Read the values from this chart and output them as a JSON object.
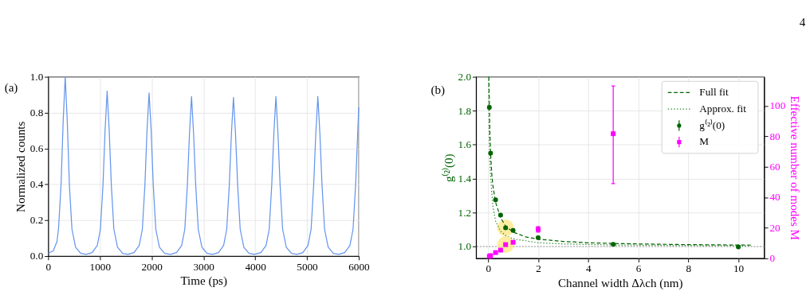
{
  "chart_data": [
    {
      "type": "line",
      "xlabel": "Time (ps)",
      "ylabel": "Normalized counts",
      "xlim": [
        0,
        6000
      ],
      "ylim": [
        0,
        1.0
      ],
      "xticks": [
        0,
        1000,
        2000,
        3000,
        4000,
        5000,
        6000
      ],
      "yticks": [
        {
          "value": 0,
          "label": "0.0"
        },
        0.2,
        0.4,
        0.6,
        0.8,
        {
          "value": 1.0,
          "label": "1.0"
        }
      ],
      "grid": true,
      "annotations": [
        "(a)"
      ],
      "x": [
        0,
        100,
        170,
        200,
        250,
        290,
        330,
        370,
        410,
        460,
        530,
        630,
        735,
        850,
        950,
        1010,
        1060,
        1100,
        1140,
        1180,
        1220,
        1270,
        1340,
        1440,
        1545,
        1660,
        1760,
        1820,
        1870,
        1910,
        1950,
        1990,
        2030,
        2080,
        2150,
        2250,
        2360,
        2480,
        2580,
        2640,
        2690,
        2730,
        2770,
        2810,
        2850,
        2900,
        2970,
        3070,
        3175,
        3290,
        3390,
        3450,
        3500,
        3540,
        3580,
        3620,
        3660,
        3710,
        3780,
        3880,
        3990,
        4110,
        4210,
        4270,
        4320,
        4360,
        4400,
        4440,
        4480,
        4530,
        4600,
        4700,
        4805,
        4920,
        5020,
        5080,
        5130,
        5170,
        5210,
        5250,
        5290,
        5340,
        5410,
        5510,
        5615,
        5730,
        5830,
        5890,
        5940,
        6000
      ],
      "series": [
        {
          "color": "#6495ed",
          "values": [
            0.015,
            0.03,
            0.08,
            0.15,
            0.4,
            0.75,
            1.0,
            0.75,
            0.4,
            0.15,
            0.05,
            0.015,
            0.01,
            0.02,
            0.06,
            0.15,
            0.4,
            0.7,
            0.92,
            0.7,
            0.4,
            0.15,
            0.05,
            0.015,
            0.01,
            0.02,
            0.06,
            0.15,
            0.4,
            0.7,
            0.91,
            0.7,
            0.4,
            0.15,
            0.05,
            0.015,
            0.01,
            0.02,
            0.06,
            0.15,
            0.4,
            0.68,
            0.89,
            0.68,
            0.4,
            0.15,
            0.05,
            0.015,
            0.01,
            0.02,
            0.06,
            0.15,
            0.4,
            0.68,
            0.885,
            0.68,
            0.4,
            0.15,
            0.05,
            0.015,
            0.01,
            0.02,
            0.06,
            0.15,
            0.4,
            0.68,
            0.89,
            0.68,
            0.4,
            0.15,
            0.05,
            0.015,
            0.01,
            0.02,
            0.06,
            0.15,
            0.4,
            0.68,
            0.89,
            0.68,
            0.4,
            0.15,
            0.05,
            0.015,
            0.01,
            0.02,
            0.06,
            0.15,
            0.4,
            0.83
          ]
        }
      ]
    },
    {
      "type": "scatter",
      "xlabel": "Channel width Δλch (nm)",
      "ylabel": "g⁽²⁾(0)",
      "y2label": "Effective number of modes M",
      "xlim": [
        -0.48,
        11.03
      ],
      "ylim": [
        0.93,
        2.0
      ],
      "y2lim": [
        0,
        119
      ],
      "xticks": [
        0,
        2,
        4,
        6,
        8,
        10
      ],
      "yticks": [
        {
          "value": 1.0,
          "label": "1.0"
        },
        1.2,
        1.4,
        1.6,
        1.8,
        {
          "value": 2.0,
          "label": "2.0"
        }
      ],
      "y2ticks": [
        0,
        20,
        40,
        60,
        80,
        100
      ],
      "grid": true,
      "legend": "top right",
      "annotations": [
        "(b)",
        "4"
      ],
      "ref_lines": [
        {
          "axis": "y",
          "value": 1.0,
          "color": "#808080",
          "line_style": "dotted"
        }
      ],
      "series": [
        {
          "type": "bubble",
          "color": "#ffe680",
          "x": [
            0.7
          ],
          "values": [
            1.11
          ],
          "sizes": [
            1
          ]
        },
        {
          "type": "bubble",
          "axis": "y2",
          "color": "#ffe680",
          "x": [
            0.7
          ],
          "values": [
            9
          ],
          "sizes": [
            1
          ]
        },
        {
          "name": "Full fit",
          "type": "line",
          "line_style": "dashed",
          "color": "#006400",
          "x": [
            0.03,
            0.05,
            0.07,
            0.1,
            0.15,
            0.2,
            0.3,
            0.5,
            0.7,
            1,
            1.5,
            2,
            3,
            4,
            5,
            6,
            8,
            10.5
          ],
          "values": [
            2.0,
            1.85,
            1.68,
            1.55,
            1.42,
            1.35,
            1.26,
            1.17,
            1.12,
            1.085,
            1.057,
            1.043,
            1.03,
            1.022,
            1.018,
            1.015,
            1.011,
            1.008
          ]
        },
        {
          "name": "Approx. fit",
          "type": "line",
          "line_style": "dotted",
          "color": "#2e8b2e",
          "x": [
            0.02,
            0.04,
            0.07,
            0.1,
            0.14,
            0.2,
            0.3,
            0.5,
            0.7,
            1,
            2,
            3,
            5,
            8,
            10.5
          ],
          "values": [
            2.0,
            1.7,
            1.5,
            1.42,
            1.33,
            1.23,
            1.15,
            1.09,
            1.065,
            1.045,
            1.022,
            1.015,
            1.009,
            1.006,
            1.004
          ]
        },
        {
          "name": "g⁽²⁾(0)",
          "type": "scatter",
          "marker": "circle",
          "color": "#006400",
          "x": [
            0.05,
            0.1,
            0.3,
            0.5,
            0.7,
            1,
            2,
            5,
            10
          ],
          "values": [
            1.82,
            1.55,
            1.275,
            1.185,
            1.11,
            1.095,
            1.052,
            1.013,
            0.998
          ],
          "errors": [
            0.008,
            0.008,
            0.008,
            0.008,
            0.008,
            0.008,
            0.008,
            0.006,
            0.006
          ]
        },
        {
          "name": "M",
          "type": "scatter",
          "marker": "square",
          "axis": "y2",
          "color": "#ff00ff",
          "x": [
            0.05,
            0.1,
            0.3,
            0.5,
            0.7,
            1,
            2,
            5
          ],
          "values": [
            1.3,
            1.8,
            3.8,
            5.4,
            9,
            10.5,
            19,
            81.7
          ],
          "errors": [
            0.8,
            0.8,
            0.8,
            0.8,
            0.8,
            0.8,
            1.8,
            [
              49,
              113
            ]
          ]
        }
      ]
    }
  ]
}
